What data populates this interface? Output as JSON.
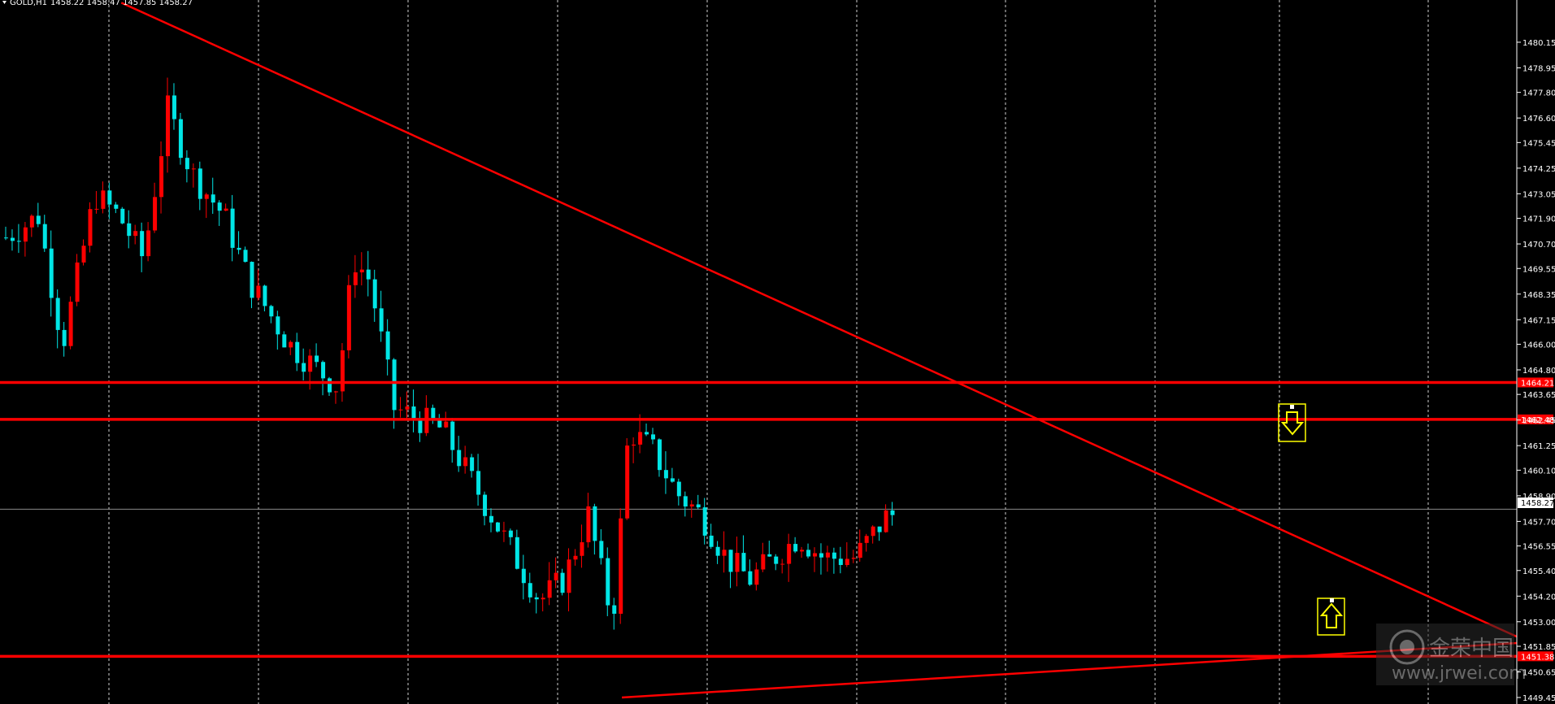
{
  "chart_data": {
    "type": "candlestick",
    "symbol_header": "GOLD,H1",
    "ohlc_header": "1458.22 1458.47 1457.85 1458.27",
    "ylim": [
      1449.45,
      1481.9
    ],
    "y_ticks": [
      "1480.15",
      "1478.95",
      "1477.80",
      "1476.60",
      "1475.45",
      "1474.25",
      "1473.05",
      "1471.90",
      "1470.70",
      "1469.55",
      "1468.35",
      "1467.15",
      "1466.00",
      "1464.80",
      "1463.65",
      "1462.45",
      "1461.25",
      "1460.10",
      "1458.90",
      "1457.70",
      "1456.55",
      "1455.40",
      "1454.20",
      "1453.00",
      "1451.85",
      "1450.65",
      "1449.45"
    ],
    "current_price_label": "1458.27",
    "current_price": 1458.27,
    "horizontal_lines": [
      {
        "label": "1464.21",
        "value": 1464.21
      },
      {
        "label": "1462.48",
        "value": 1462.48
      },
      {
        "label": "1451.38",
        "value": 1451.38
      }
    ],
    "trendlines": [
      {
        "from": [
          0.08,
          1482.0
        ],
        "to": [
          1.0,
          1452.3
        ]
      },
      {
        "from": [
          0.41,
          1449.45
        ],
        "to": [
          1.0,
          1452.0
        ]
      }
    ],
    "up_color": "#ff0000",
    "down_color": "#00e5e5",
    "line_color": "#ff0000",
    "arrow_color": "#ffff00",
    "arrows": [
      {
        "direction": "down",
        "icon": "down-arrow-icon"
      },
      {
        "direction": "up",
        "icon": "up-arrow-icon"
      }
    ],
    "watermark": "www.jrwei.com",
    "watermark_brand": "金荣中国"
  }
}
